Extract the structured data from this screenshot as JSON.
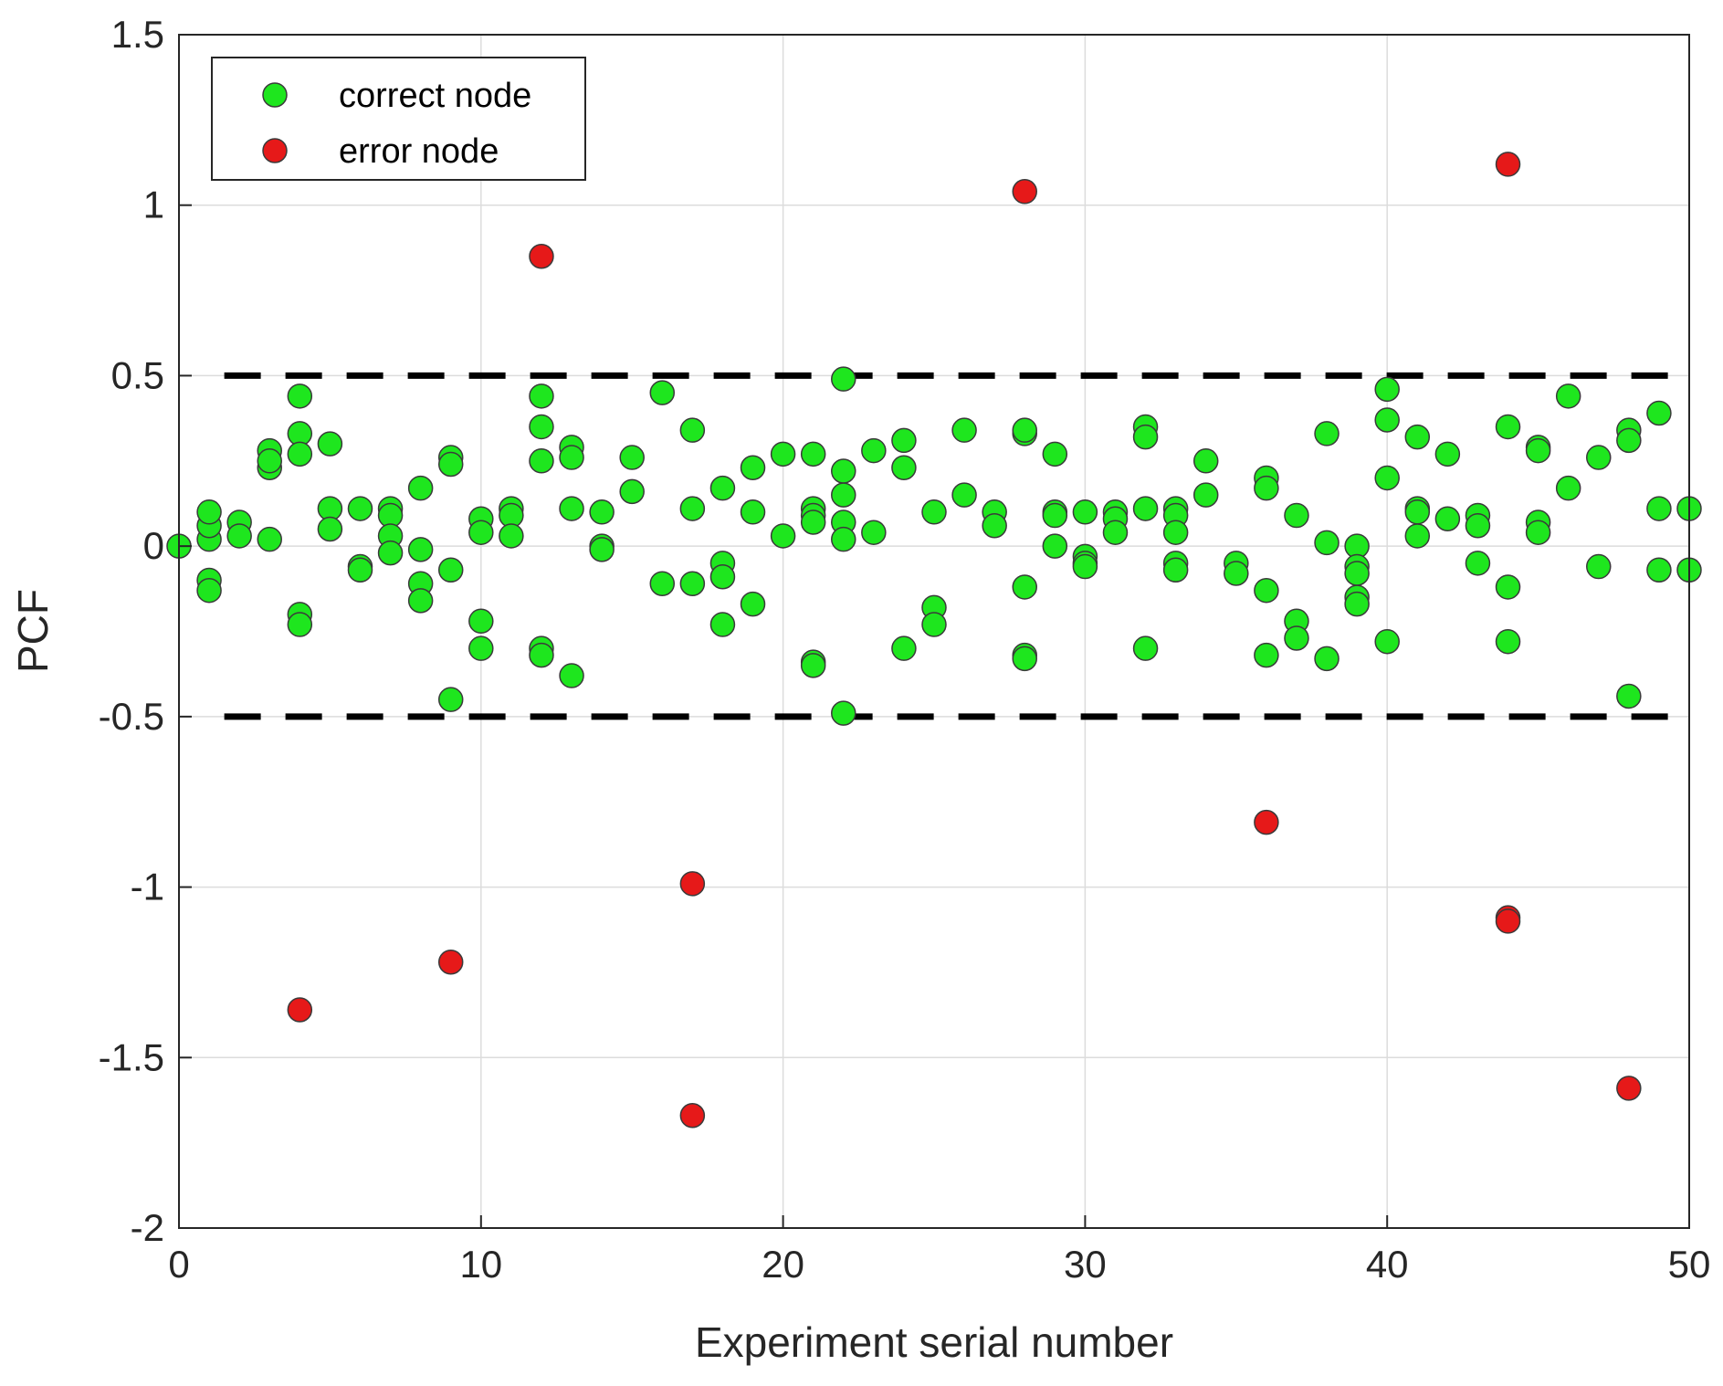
{
  "chart_data": {
    "type": "scatter",
    "title": "",
    "xlabel": "Experiment serial number",
    "ylabel": "PCF",
    "xlim": [
      0,
      50
    ],
    "ylim": [
      -2,
      1.5
    ],
    "x_ticks": [
      "0",
      "10",
      "20",
      "30",
      "40",
      "50"
    ],
    "y_ticks": [
      "1.5",
      "1",
      "0.5",
      "0",
      "-0.5",
      "-1",
      "-1.5",
      "-2"
    ],
    "grid": true,
    "legend_position": "top-left",
    "threshold_lines": [
      0.5,
      -0.5
    ],
    "series": [
      {
        "name": "correct node",
        "color": "#1ee61e",
        "points": [
          [
            0,
            0
          ],
          [
            1,
            0.02
          ],
          [
            1,
            0.06
          ],
          [
            1,
            0.1
          ],
          [
            1,
            -0.1
          ],
          [
            1,
            -0.13
          ],
          [
            2,
            0.07
          ],
          [
            2,
            0.03
          ],
          [
            3,
            0.28
          ],
          [
            3,
            0.23
          ],
          [
            3,
            0.25
          ],
          [
            3,
            0.02
          ],
          [
            4,
            0.44
          ],
          [
            4,
            0.33
          ],
          [
            4,
            0.27
          ],
          [
            4,
            -0.2
          ],
          [
            4,
            -0.23
          ],
          [
            5,
            0.3
          ],
          [
            5,
            0.11
          ],
          [
            5,
            0.05
          ],
          [
            6,
            0.11
          ],
          [
            6,
            -0.06
          ],
          [
            6,
            -0.07
          ],
          [
            7,
            0.11
          ],
          [
            7,
            0.09
          ],
          [
            7,
            0.03
          ],
          [
            7,
            -0.02
          ],
          [
            8,
            0.17
          ],
          [
            8,
            -0.01
          ],
          [
            8,
            -0.11
          ],
          [
            8,
            -0.16
          ],
          [
            9,
            0.26
          ],
          [
            9,
            0.24
          ],
          [
            9,
            -0.07
          ],
          [
            9,
            -0.45
          ],
          [
            10,
            0.08
          ],
          [
            10,
            0.04
          ],
          [
            10,
            -0.22
          ],
          [
            10,
            -0.3
          ],
          [
            11,
            0.11
          ],
          [
            11,
            0.09
          ],
          [
            11,
            0.03
          ],
          [
            12,
            0.44
          ],
          [
            12,
            0.35
          ],
          [
            12,
            0.25
          ],
          [
            12,
            -0.3
          ],
          [
            12,
            -0.32
          ],
          [
            13,
            0.29
          ],
          [
            13,
            0.26
          ],
          [
            13,
            0.11
          ],
          [
            13,
            -0.38
          ],
          [
            14,
            0.1
          ],
          [
            14,
            0
          ],
          [
            14,
            -0.01
          ],
          [
            15,
            0.26
          ],
          [
            15,
            0.16
          ],
          [
            16,
            0.45
          ],
          [
            16,
            -0.11
          ],
          [
            17,
            0.34
          ],
          [
            17,
            0.11
          ],
          [
            17,
            -0.11
          ],
          [
            18,
            0.17
          ],
          [
            18,
            -0.05
          ],
          [
            18,
            -0.09
          ],
          [
            18,
            -0.23
          ],
          [
            19,
            0.23
          ],
          [
            19,
            0.1
          ],
          [
            19,
            -0.17
          ],
          [
            20,
            0.27
          ],
          [
            20,
            0.03
          ],
          [
            21,
            0.27
          ],
          [
            21,
            0.11
          ],
          [
            21,
            0.09
          ],
          [
            21,
            0.07
          ],
          [
            21,
            -0.34
          ],
          [
            21,
            -0.35
          ],
          [
            22,
            0.49
          ],
          [
            22,
            0.22
          ],
          [
            22,
            0.15
          ],
          [
            22,
            0.07
          ],
          [
            22,
            0.02
          ],
          [
            22,
            -0.49
          ],
          [
            23,
            0.28
          ],
          [
            23,
            0.04
          ],
          [
            24,
            0.31
          ],
          [
            24,
            0.23
          ],
          [
            24,
            -0.3
          ],
          [
            25,
            0.1
          ],
          [
            25,
            -0.18
          ],
          [
            25,
            -0.23
          ],
          [
            26,
            0.34
          ],
          [
            26,
            0.15
          ],
          [
            27,
            0.1
          ],
          [
            27,
            0.06
          ],
          [
            28,
            0.33
          ],
          [
            28,
            0.34
          ],
          [
            28,
            -0.12
          ],
          [
            28,
            -0.32
          ],
          [
            28,
            -0.33
          ],
          [
            29,
            0.27
          ],
          [
            29,
            0.1
          ],
          [
            29,
            0.09
          ],
          [
            29,
            0
          ],
          [
            30,
            0.1
          ],
          [
            30,
            -0.03
          ],
          [
            30,
            -0.05
          ],
          [
            30,
            -0.06
          ],
          [
            31,
            0.1
          ],
          [
            31,
            0.08
          ],
          [
            31,
            0.04
          ],
          [
            32,
            0.35
          ],
          [
            32,
            0.32
          ],
          [
            32,
            0.11
          ],
          [
            32,
            -0.3
          ],
          [
            33,
            0.11
          ],
          [
            33,
            0.09
          ],
          [
            33,
            0.04
          ],
          [
            33,
            -0.05
          ],
          [
            33,
            -0.07
          ],
          [
            34,
            0.25
          ],
          [
            34,
            0.15
          ],
          [
            35,
            -0.05
          ],
          [
            35,
            -0.08
          ],
          [
            36,
            0.2
          ],
          [
            36,
            0.17
          ],
          [
            36,
            -0.13
          ],
          [
            36,
            -0.32
          ],
          [
            37,
            0.09
          ],
          [
            37,
            -0.22
          ],
          [
            37,
            -0.27
          ],
          [
            38,
            0.33
          ],
          [
            38,
            0.01
          ],
          [
            38,
            -0.33
          ],
          [
            39,
            0
          ],
          [
            39,
            -0.06
          ],
          [
            39,
            -0.08
          ],
          [
            39,
            -0.15
          ],
          [
            39,
            -0.17
          ],
          [
            40,
            0.46
          ],
          [
            40,
            0.37
          ],
          [
            40,
            0.2
          ],
          [
            40,
            -0.28
          ],
          [
            41,
            0.32
          ],
          [
            41,
            0.11
          ],
          [
            41,
            0.1
          ],
          [
            41,
            0.03
          ],
          [
            42,
            0.27
          ],
          [
            42,
            0.08
          ],
          [
            43,
            0.09
          ],
          [
            43,
            0.06
          ],
          [
            43,
            -0.05
          ],
          [
            44,
            0.35
          ],
          [
            44,
            -0.12
          ],
          [
            44,
            -0.28
          ],
          [
            45,
            0.29
          ],
          [
            45,
            0.28
          ],
          [
            45,
            0.07
          ],
          [
            45,
            0.04
          ],
          [
            46,
            0.44
          ],
          [
            46,
            0.17
          ],
          [
            47,
            0.26
          ],
          [
            47,
            -0.06
          ],
          [
            48,
            0.34
          ],
          [
            48,
            0.31
          ],
          [
            48,
            -0.44
          ],
          [
            49,
            0.39
          ],
          [
            49,
            0.11
          ],
          [
            49,
            -0.07
          ],
          [
            50,
            0.11
          ],
          [
            50,
            -0.07
          ]
        ]
      },
      {
        "name": "error node",
        "color": "#e61919",
        "points": [
          [
            4,
            -1.36
          ],
          [
            9,
            -1.22
          ],
          [
            12,
            0.85
          ],
          [
            17,
            -0.99
          ],
          [
            17,
            -1.67
          ],
          [
            28,
            1.04
          ],
          [
            36,
            -0.81
          ],
          [
            44,
            1.12
          ],
          [
            44,
            -1.09
          ],
          [
            44,
            -1.1
          ],
          [
            48,
            -1.59
          ]
        ]
      }
    ]
  }
}
